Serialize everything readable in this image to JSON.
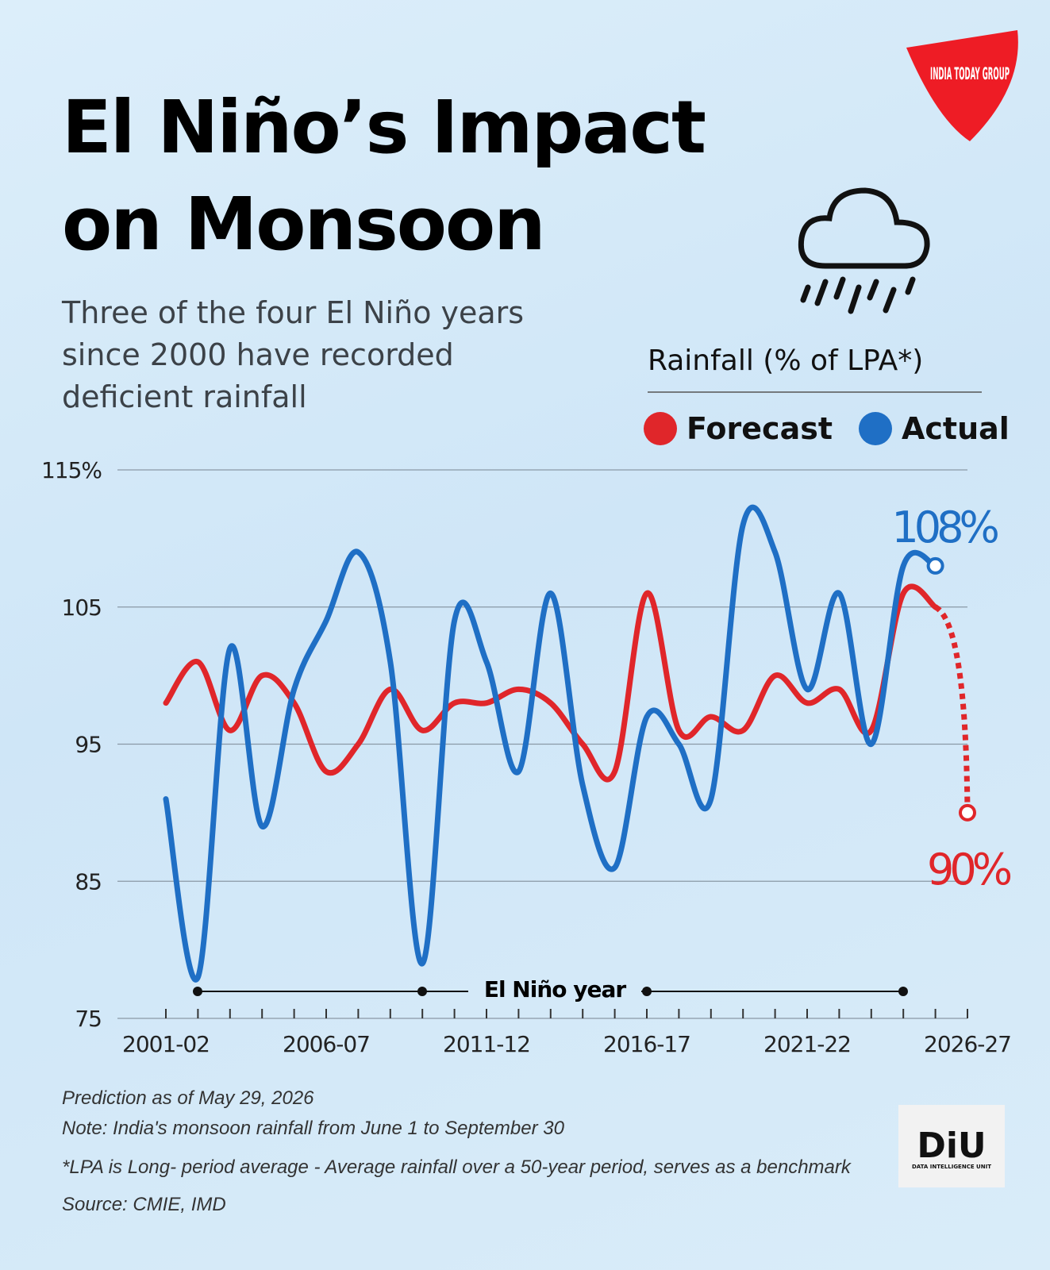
{
  "brand": "INDIA TODAY GROUP",
  "chart_data": {
    "type": "line",
    "title": "El Niño’s Impact on Monsoon",
    "subtitle": "Three of the four El Niño years since 2000 have recorded deficient rainfall",
    "legend_title": "Rainfall (% of LPA*)",
    "annotation": "El Niño year",
    "categories": [
      "2001-02",
      null,
      null,
      null,
      null,
      "2006-07",
      null,
      null,
      null,
      null,
      "2011-12",
      null,
      null,
      null,
      null,
      "2016-17",
      null,
      null,
      null,
      null,
      "2021-22",
      null,
      null,
      null,
      null,
      "2026-27"
    ],
    "series": [
      {
        "name": "Forecast",
        "color": "#e0262a",
        "values": [
          98,
          101,
          96,
          100,
          98,
          93,
          95,
          99,
          96,
          98,
          98,
          99,
          98,
          95,
          93,
          106,
          96,
          97,
          96,
          100,
          98,
          99,
          96,
          106,
          105,
          90
        ],
        "value_labels": [
          null,
          null,
          null,
          null,
          null,
          null,
          null,
          null,
          null,
          null,
          null,
          null,
          null,
          null,
          null,
          null,
          null,
          null,
          null,
          null,
          null,
          null,
          null,
          null,
          null,
          "90%"
        ]
      },
      {
        "name": "Actual",
        "color": "#1f6fc5",
        "values": [
          91,
          78,
          102,
          89,
          99,
          104,
          109,
          101,
          79,
          104,
          101,
          93,
          106,
          92,
          86,
          97,
          95,
          91,
          111,
          109,
          99,
          106,
          95,
          108,
          108,
          null
        ],
        "value_labels": [
          null,
          null,
          null,
          null,
          null,
          null,
          null,
          null,
          null,
          null,
          null,
          null,
          null,
          null,
          null,
          null,
          null,
          null,
          null,
          null,
          null,
          null,
          null,
          null,
          "108%",
          null
        ]
      }
    ],
    "ylim": [
      75,
      115
    ],
    "yticks": [
      75,
      85,
      95,
      105,
      {
        "value": 115,
        "label": "115%"
      }
    ],
    "grid": true,
    "notes": [
      "Prediction as of May 29, 2026",
      "Note: India's monsoon rainfall from June 1 to September 30",
      "*LPA is Long- period average - Average rainfall over a 50-year period, serves as a benchmark",
      "Source: CMIE, IMD"
    ]
  },
  "footer_logo": {
    "name": "DiU",
    "subtitle": "DATA INTELLIGENCE UNIT"
  }
}
